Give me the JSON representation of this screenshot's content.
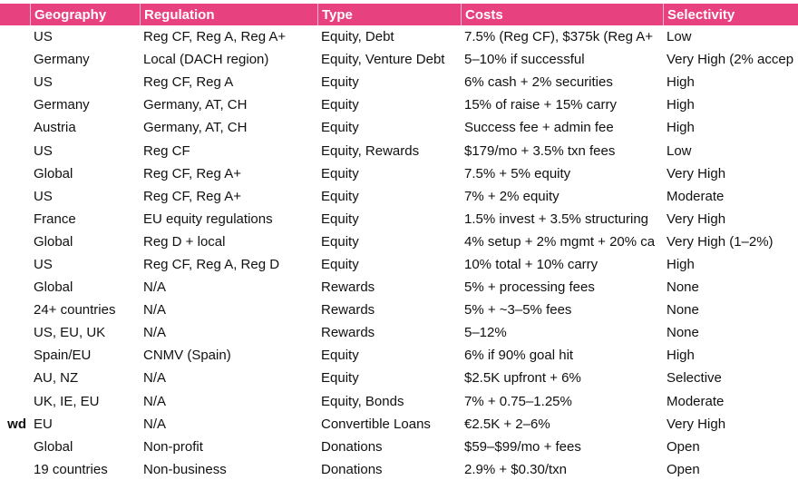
{
  "table": {
    "headers": [
      "Geography",
      "Regulation",
      "Type",
      "Costs",
      "Selectivity"
    ],
    "rows": [
      {
        "name": "",
        "geography": "US",
        "regulation": "Reg CF, Reg A, Reg A+",
        "type": "Equity, Debt",
        "costs": "7.5% (Reg CF), $375k (Reg A+",
        "selectivity": "Low"
      },
      {
        "name": "",
        "geography": "Germany",
        "regulation": "Local (DACH region)",
        "type": "Equity, Venture Debt",
        "costs": "5–10% if successful",
        "selectivity": "Very High (2% accep"
      },
      {
        "name": "",
        "geography": "US",
        "regulation": "Reg CF, Reg A",
        "type": "Equity",
        "costs": "6% cash + 2% securities",
        "selectivity": "High"
      },
      {
        "name": "",
        "geography": "Germany",
        "regulation": "Germany, AT, CH",
        "type": "Equity",
        "costs": "15% of raise + 15% carry",
        "selectivity": "High"
      },
      {
        "name": "",
        "geography": "Austria",
        "regulation": "Germany, AT, CH",
        "type": "Equity",
        "costs": "Success fee + admin fee",
        "selectivity": "High"
      },
      {
        "name": "",
        "geography": "US",
        "regulation": "Reg CF",
        "type": "Equity, Rewards",
        "costs": "$179/mo + 3.5% txn fees",
        "selectivity": "Low"
      },
      {
        "name": "",
        "geography": "Global",
        "regulation": "Reg CF, Reg A+",
        "type": "Equity",
        "costs": "7.5% + 5% equity",
        "selectivity": "Very High"
      },
      {
        "name": "",
        "geography": "US",
        "regulation": "Reg CF, Reg A+",
        "type": "Equity",
        "costs": "7% + 2% equity",
        "selectivity": "Moderate"
      },
      {
        "name": "",
        "geography": "France",
        "regulation": "EU equity regulations",
        "type": "Equity",
        "costs": "1.5% invest + 3.5% structuring",
        "selectivity": "Very High"
      },
      {
        "name": "",
        "geography": "Global",
        "regulation": "Reg D + local",
        "type": "Equity",
        "costs": "4% setup + 2% mgmt + 20% ca",
        "selectivity": "Very High (1–2%)"
      },
      {
        "name": "",
        "geography": "US",
        "regulation": "Reg CF, Reg A, Reg D",
        "type": "Equity",
        "costs": "10% total + 10% carry",
        "selectivity": "High"
      },
      {
        "name": "",
        "geography": "Global",
        "regulation": "N/A",
        "type": "Rewards",
        "costs": "5% + processing fees",
        "selectivity": "None"
      },
      {
        "name": "",
        "geography": "24+ countries",
        "regulation": "N/A",
        "type": "Rewards",
        "costs": "5% + ~3–5% fees",
        "selectivity": "None"
      },
      {
        "name": "",
        "geography": "US, EU, UK",
        "regulation": "N/A",
        "type": "Rewards",
        "costs": "5–12%",
        "selectivity": "None"
      },
      {
        "name": "",
        "geography": "Spain/EU",
        "regulation": "CNMV (Spain)",
        "type": "Equity",
        "costs": "6% if 90% goal hit",
        "selectivity": "High"
      },
      {
        "name": "",
        "geography": "AU, NZ",
        "regulation": "N/A",
        "type": "Equity",
        "costs": "$2.5K upfront + 6%",
        "selectivity": "Selective"
      },
      {
        "name": "",
        "geography": "UK, IE, EU",
        "regulation": "N/A",
        "type": "Equity, Bonds",
        "costs": "7% + 0.75–1.25%",
        "selectivity": "Moderate"
      },
      {
        "name": "wd",
        "geography": "EU",
        "regulation": "N/A",
        "type": "Convertible Loans",
        "costs": "€2.5K + 2–6%",
        "selectivity": "Very High"
      },
      {
        "name": "",
        "geography": "Global",
        "regulation": "Non-profit",
        "type": "Donations",
        "costs": "$59–$99/mo + fees",
        "selectivity": "Open"
      },
      {
        "name": "",
        "geography": "19 countries",
        "regulation": "Non-business",
        "type": "Donations",
        "costs": "2.9% + $0.30/txn",
        "selectivity": "Open"
      }
    ]
  },
  "colors": {
    "header_background": "#e8417f",
    "header_text": "#ffffff"
  }
}
